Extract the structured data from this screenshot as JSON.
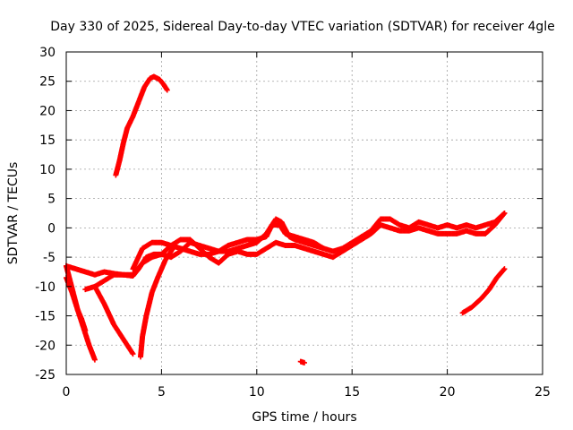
{
  "chart_data": {
    "type": "scatter",
    "title": "Day 330 of 2025, Sidereal Day-to-day VTEC variation (SDTVAR) for receiver 4gle",
    "xlabel": "GPS time / hours",
    "ylabel": "SDTVAR / TECUs",
    "xlim": [
      0,
      25
    ],
    "ylim": [
      -25,
      30
    ],
    "xticks": [
      0,
      5,
      10,
      15,
      20,
      25
    ],
    "yticks": [
      -25,
      -20,
      -15,
      -10,
      -5,
      0,
      5,
      10,
      15,
      20,
      25,
      30
    ],
    "grid": true,
    "marker": "plus",
    "color": "#ff0000",
    "series": [
      {
        "name": "arc-a",
        "points": [
          [
            0.0,
            -6.5
          ],
          [
            0.5,
            -7.0
          ],
          [
            1.0,
            -7.5
          ],
          [
            1.5,
            -8.0
          ],
          [
            2.0,
            -7.5
          ],
          [
            2.5,
            -7.8
          ],
          [
            3.0,
            -8.0
          ],
          [
            3.5,
            -8.2
          ],
          [
            3.8,
            -7.0
          ],
          [
            4.2,
            -5.0
          ],
          [
            4.6,
            -4.5
          ],
          [
            5.0,
            -4.5
          ],
          [
            5.5,
            -5.0
          ],
          [
            6.0,
            -4.0
          ],
          [
            6.5,
            -2.5
          ],
          [
            7.0,
            -3.0
          ],
          [
            7.5,
            -3.5
          ],
          [
            8.0,
            -4.0
          ],
          [
            8.5,
            -4.0
          ],
          [
            9.0,
            -3.5
          ],
          [
            9.5,
            -3.0
          ],
          [
            10.0,
            -2.5
          ],
          [
            10.5,
            -1.0
          ],
          [
            11.0,
            1.5
          ],
          [
            11.3,
            1.0
          ],
          [
            11.7,
            -1.5
          ],
          [
            12.0,
            -2.0
          ],
          [
            12.5,
            -2.5
          ],
          [
            13.0,
            -3.0
          ],
          [
            13.5,
            -3.5
          ],
          [
            14.0,
            -4.0
          ],
          [
            14.5,
            -3.5
          ],
          [
            15.0,
            -2.5
          ],
          [
            15.5,
            -1.5
          ],
          [
            16.0,
            -0.5
          ],
          [
            16.5,
            1.5
          ],
          [
            17.0,
            1.5
          ],
          [
            17.5,
            0.5
          ],
          [
            18.0,
            0.0
          ],
          [
            18.5,
            1.0
          ],
          [
            19.0,
            0.5
          ],
          [
            19.5,
            0.0
          ],
          [
            20.0,
            0.5
          ],
          [
            20.5,
            0.0
          ],
          [
            21.0,
            0.5
          ],
          [
            21.5,
            0.0
          ],
          [
            22.0,
            0.5
          ],
          [
            22.5,
            1.0
          ],
          [
            23.0,
            2.5
          ]
        ]
      },
      {
        "name": "arc-b",
        "points": [
          [
            1.0,
            -10.5
          ],
          [
            1.5,
            -10.0
          ],
          [
            2.0,
            -9.0
          ],
          [
            2.5,
            -8.0
          ],
          [
            3.0,
            -8.0
          ],
          [
            3.5,
            -8.0
          ],
          [
            4.0,
            -6.0
          ],
          [
            4.5,
            -5.0
          ],
          [
            5.0,
            -4.5
          ],
          [
            5.5,
            -3.0
          ],
          [
            6.0,
            -2.0
          ],
          [
            6.5,
            -2.0
          ],
          [
            7.0,
            -3.5
          ],
          [
            7.5,
            -5.0
          ],
          [
            8.0,
            -6.0
          ],
          [
            8.5,
            -4.5
          ],
          [
            9.0,
            -4.0
          ],
          [
            9.5,
            -4.5
          ],
          [
            10.0,
            -4.5
          ],
          [
            10.5,
            -3.5
          ],
          [
            11.0,
            -2.5
          ],
          [
            11.5,
            -3.0
          ],
          [
            12.0,
            -3.0
          ],
          [
            12.5,
            -3.5
          ],
          [
            13.0,
            -4.0
          ],
          [
            13.5,
            -4.5
          ],
          [
            14.0,
            -5.0
          ],
          [
            14.5,
            -4.0
          ],
          [
            15.0,
            -3.0
          ],
          [
            15.5,
            -2.0
          ],
          [
            16.0,
            -1.0
          ],
          [
            16.5,
            0.5
          ],
          [
            17.0,
            0.0
          ],
          [
            17.5,
            -0.5
          ],
          [
            18.0,
            -0.5
          ],
          [
            18.5,
            0.0
          ],
          [
            19.0,
            -0.5
          ],
          [
            19.5,
            -1.0
          ],
          [
            20.0,
            -1.0
          ],
          [
            20.5,
            -1.0
          ],
          [
            21.0,
            -0.5
          ],
          [
            21.5,
            -1.0
          ],
          [
            22.0,
            -1.0
          ],
          [
            22.5,
            0.5
          ],
          [
            23.0,
            2.5
          ]
        ]
      },
      {
        "name": "arc-c",
        "points": [
          [
            3.5,
            -7.0
          ],
          [
            4.0,
            -3.5
          ],
          [
            4.5,
            -2.5
          ],
          [
            5.0,
            -2.5
          ],
          [
            5.5,
            -3.0
          ],
          [
            6.0,
            -3.5
          ],
          [
            6.5,
            -4.0
          ],
          [
            7.0,
            -4.5
          ],
          [
            7.5,
            -4.5
          ],
          [
            8.0,
            -4.0
          ],
          [
            8.5,
            -3.0
          ],
          [
            9.0,
            -2.5
          ],
          [
            9.5,
            -2.0
          ],
          [
            10.0,
            -2.0
          ],
          [
            10.5,
            -1.5
          ],
          [
            10.8,
            0.5
          ],
          [
            11.2,
            0.5
          ],
          [
            11.5,
            -1.0
          ],
          [
            12.0,
            -1.5
          ],
          [
            12.5,
            -2.0
          ],
          [
            13.0,
            -2.5
          ],
          [
            13.5,
            -3.5
          ]
        ]
      },
      {
        "name": "rise-early",
        "points": [
          [
            2.6,
            9.0
          ],
          [
            2.8,
            11.5
          ],
          [
            3.0,
            14.5
          ],
          [
            3.2,
            17.0
          ],
          [
            3.5,
            19.0
          ],
          [
            3.8,
            21.5
          ],
          [
            4.1,
            24.0
          ],
          [
            4.4,
            25.5
          ],
          [
            4.6,
            25.8
          ],
          [
            4.9,
            25.3
          ],
          [
            5.1,
            24.5
          ],
          [
            5.3,
            23.5
          ]
        ]
      },
      {
        "name": "drop-1",
        "points": [
          [
            0.0,
            -6.5
          ],
          [
            0.2,
            -9.0
          ],
          [
            0.4,
            -11.5
          ],
          [
            0.6,
            -14.0
          ],
          [
            0.8,
            -15.5
          ],
          [
            1.0,
            -17.5
          ]
        ]
      },
      {
        "name": "drop-2",
        "points": [
          [
            0.0,
            -8.5
          ],
          [
            0.3,
            -11.0
          ],
          [
            0.6,
            -14.0
          ],
          [
            0.9,
            -17.0
          ],
          [
            1.2,
            -20.0
          ],
          [
            1.5,
            -22.5
          ]
        ]
      },
      {
        "name": "drop-3",
        "points": [
          [
            1.5,
            -10.0
          ],
          [
            2.0,
            -13.0
          ],
          [
            2.5,
            -16.5
          ],
          [
            3.0,
            -19.0
          ],
          [
            3.5,
            -21.5
          ]
        ]
      },
      {
        "name": "drop-4",
        "points": [
          [
            3.9,
            -22.0
          ],
          [
            4.0,
            -18.5
          ],
          [
            4.2,
            -15.0
          ],
          [
            4.5,
            -11.0
          ],
          [
            4.8,
            -8.5
          ],
          [
            5.2,
            -5.5
          ],
          [
            5.6,
            -3.5
          ]
        ]
      },
      {
        "name": "late-arc",
        "points": [
          [
            20.8,
            -14.5
          ],
          [
            21.3,
            -13.5
          ],
          [
            21.8,
            -12.0
          ],
          [
            22.2,
            -10.5
          ],
          [
            22.6,
            -8.5
          ],
          [
            23.0,
            -7.0
          ]
        ]
      },
      {
        "name": "isolated",
        "points": [
          [
            12.3,
            -22.8
          ],
          [
            12.5,
            -23.0
          ]
        ]
      }
    ]
  }
}
